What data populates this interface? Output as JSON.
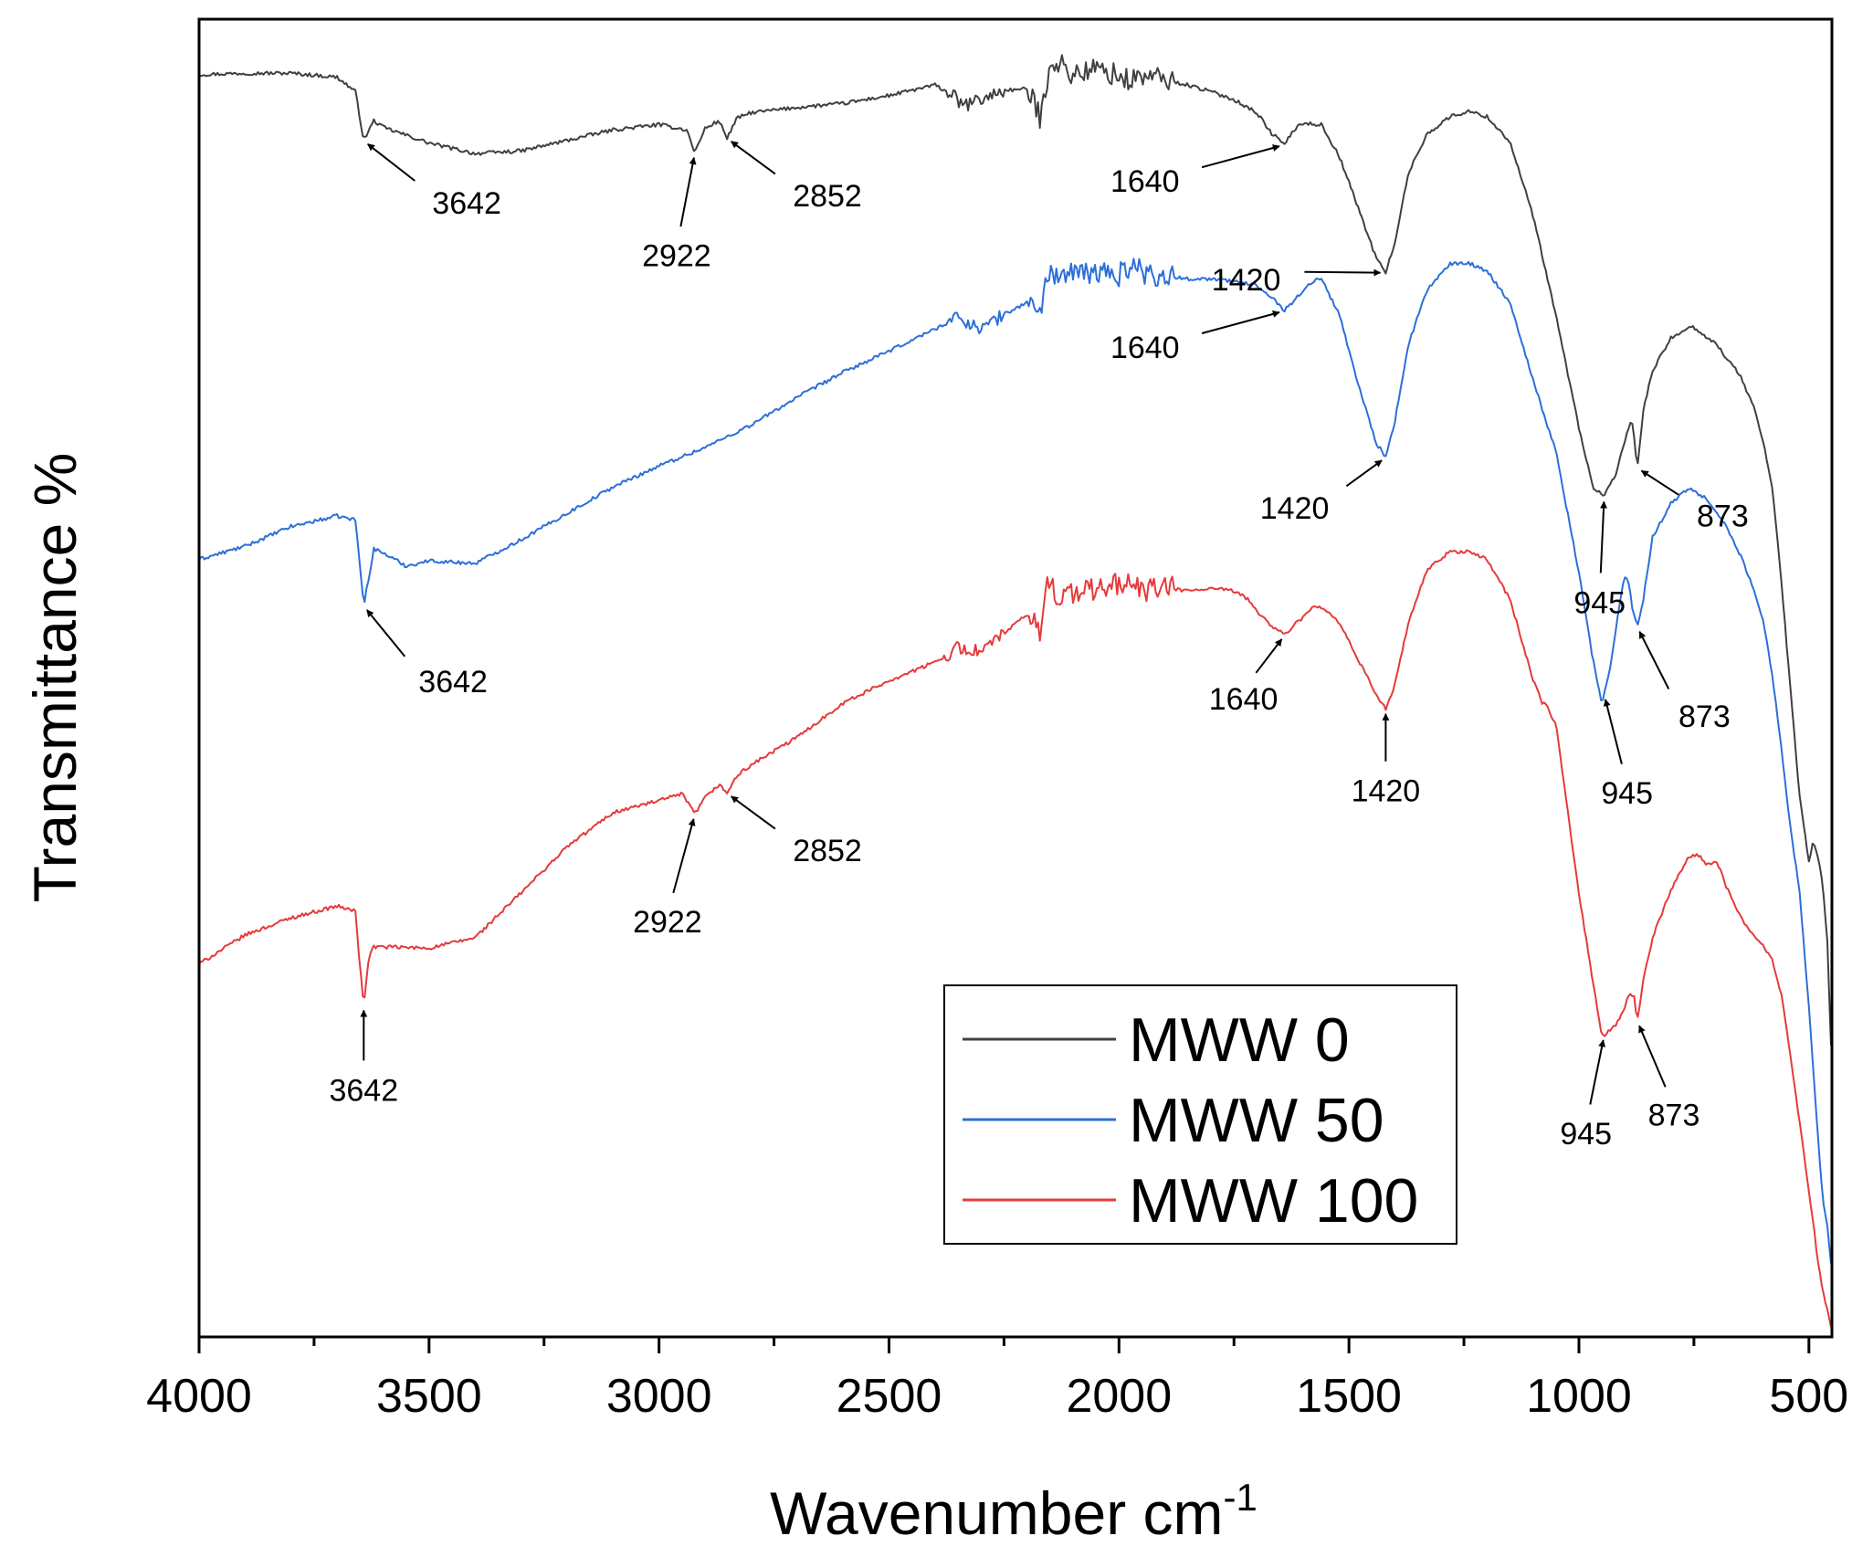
{
  "chart_data": {
    "type": "line",
    "xlabel": "Wavenumber cm",
    "xlabel_superscript": "-1",
    "ylabel": "Transmittance %",
    "xlim": [
      4000,
      450
    ],
    "ylim": [
      0,
      100
    ],
    "x_ticks": [
      4000,
      3500,
      3000,
      2500,
      2000,
      1500,
      1000,
      500
    ],
    "x_tick_labels": [
      "4000",
      "3500",
      "3000",
      "2500",
      "2000",
      "1500",
      "1000",
      "500"
    ],
    "y_ticks_shown": false,
    "legend_position": "center-right",
    "series": [
      {
        "name": "MWW 0",
        "color": "#404040",
        "x": [
          4000,
          3900,
          3800,
          3700,
          3660,
          3642,
          3620,
          3600,
          3500,
          3400,
          3300,
          3200,
          3100,
          3000,
          2940,
          2922,
          2900,
          2870,
          2852,
          2830,
          2800,
          2700,
          2600,
          2500,
          2400,
          2360,
          2340,
          2300,
          2250,
          2200,
          2170,
          2160,
          2150,
          2130,
          2100,
          2050,
          2000,
          1980,
          1950,
          1900,
          1850,
          1800,
          1750,
          1700,
          1670,
          1640,
          1620,
          1600,
          1560,
          1520,
          1480,
          1440,
          1420,
          1400,
          1370,
          1330,
          1280,
          1240,
          1200,
          1150,
          1100,
          1050,
          1000,
          970,
          945,
          920,
          900,
          885,
          873,
          860,
          840,
          800,
          760,
          740,
          720,
          700,
          680,
          650,
          620,
          600,
          580,
          560,
          540,
          520,
          500,
          490,
          480,
          470,
          460,
          450
        ],
        "y": [
          95.8,
          95.9,
          95.9,
          95.6,
          94.5,
          90.8,
          92.3,
          91.8,
          90.6,
          89.8,
          90.0,
          90.8,
          91.6,
          92.0,
          91.6,
          89.9,
          91.7,
          92.3,
          91.0,
          92.5,
          92.9,
          93.3,
          93.6,
          94.2,
          95.0,
          94.2,
          93.4,
          93.9,
          94.6,
          94.7,
          92.5,
          94.6,
          97.0,
          96.6,
          95.8,
          96.2,
          95.7,
          95.3,
          95.7,
          95.4,
          95.0,
          94.5,
          93.9,
          92.9,
          91.4,
          90.5,
          91.6,
          92.1,
          92.0,
          89.5,
          85.7,
          81.8,
          80.8,
          83.1,
          88.4,
          91.3,
          92.6,
          93.0,
          92.6,
          90.7,
          85.1,
          77.5,
          69.0,
          64.5,
          63.8,
          65.4,
          68.1,
          69.7,
          66.0,
          70.3,
          73.3,
          75.8,
          76.7,
          76.4,
          75.8,
          75.3,
          74.3,
          73.0,
          70.6,
          68.0,
          64.5,
          57.5,
          49.0,
          41.0,
          36.0,
          37.7,
          36.3,
          34.5,
          30.0,
          20.0
        ]
      },
      {
        "name": "MWW 50",
        "color": "#2c6fd8",
        "x": [
          4000,
          3900,
          3800,
          3700,
          3660,
          3642,
          3620,
          3600,
          3550,
          3500,
          3400,
          3300,
          3200,
          3100,
          3000,
          2900,
          2800,
          2700,
          2600,
          2500,
          2400,
          2350,
          2300,
          2250,
          2200,
          2170,
          2160,
          2150,
          2130,
          2100,
          2050,
          2000,
          1970,
          1950,
          1900,
          1850,
          1800,
          1750,
          1700,
          1670,
          1640,
          1610,
          1580,
          1560,
          1520,
          1480,
          1440,
          1420,
          1400,
          1370,
          1330,
          1280,
          1240,
          1200,
          1150,
          1100,
          1080,
          1050,
          1000,
          970,
          950,
          930,
          910,
          900,
          890,
          885,
          873,
          860,
          840,
          800,
          760,
          740,
          720,
          700,
          680,
          650,
          620,
          600,
          580,
          560,
          540,
          520,
          500,
          490,
          480,
          470,
          460,
          450
        ],
        "y": [
          59.0,
          60.0,
          61.5,
          62.3,
          62.0,
          55.5,
          59.8,
          59.5,
          58.5,
          58.9,
          58.7,
          60.5,
          62.5,
          64.5,
          66.1,
          67.5,
          69.2,
          71.3,
          73.2,
          74.8,
          76.5,
          77.4,
          76.5,
          77.6,
          78.5,
          78.0,
          79.7,
          80.8,
          80.6,
          80.6,
          80.8,
          80.6,
          81.5,
          80.8,
          80.5,
          80.3,
          80.3,
          80.1,
          79.8,
          79.0,
          77.9,
          79.0,
          80.1,
          80.3,
          77.5,
          72.3,
          67.8,
          66.8,
          69.5,
          75.4,
          79.5,
          81.4,
          81.5,
          80.9,
          78.5,
          72.7,
          70.4,
          67.2,
          58.0,
          51.5,
          48.0,
          51.1,
          56.1,
          57.7,
          57.1,
          55.5,
          53.9,
          56.0,
          60.7,
          63.3,
          64.4,
          64.0,
          63.5,
          62.6,
          61.5,
          59.4,
          56.7,
          54.4,
          50.4,
          44.8,
          38.6,
          33.7,
          25.0,
          20.0,
          15.0,
          10.5,
          8.5,
          5.0
        ]
      },
      {
        "name": "MWW 100",
        "color": "#e63a3a",
        "x": [
          4000,
          3900,
          3800,
          3700,
          3660,
          3650,
          3642,
          3630,
          3620,
          3600,
          3500,
          3400,
          3300,
          3200,
          3100,
          3000,
          2950,
          2922,
          2900,
          2870,
          2852,
          2830,
          2800,
          2700,
          2600,
          2500,
          2400,
          2350,
          2300,
          2250,
          2200,
          2170,
          2160,
          2150,
          2130,
          2100,
          2050,
          2000,
          1970,
          1950,
          1900,
          1850,
          1800,
          1750,
          1720,
          1700,
          1670,
          1640,
          1610,
          1580,
          1560,
          1520,
          1480,
          1440,
          1420,
          1400,
          1370,
          1330,
          1280,
          1240,
          1200,
          1150,
          1100,
          1080,
          1070,
          1060,
          1050,
          1000,
          970,
          950,
          920,
          900,
          890,
          880,
          873,
          860,
          840,
          800,
          760,
          740,
          720,
          700,
          680,
          650,
          620,
          600,
          580,
          560,
          540,
          520,
          500,
          490,
          480,
          470,
          460,
          450
        ],
        "y": [
          28.3,
          30.5,
          31.8,
          32.7,
          32.3,
          28.0,
          25.2,
          29.0,
          29.6,
          29.6,
          29.5,
          30.3,
          33.7,
          37.2,
          39.8,
          40.7,
          41.2,
          39.7,
          40.9,
          41.9,
          41.3,
          42.6,
          43.4,
          45.5,
          48.1,
          49.8,
          51.2,
          52.3,
          52.0,
          53.4,
          54.8,
          53.5,
          56.5,
          57.6,
          56.0,
          56.5,
          56.7,
          57.2,
          57.1,
          56.6,
          56.9,
          56.6,
          56.8,
          56.6,
          56.0,
          55.1,
          54.0,
          53.3,
          54.3,
          55.3,
          55.4,
          54.1,
          51.4,
          48.7,
          47.7,
          49.5,
          54.3,
          58.2,
          59.6,
          59.6,
          59.0,
          56.0,
          49.9,
          48.1,
          47.9,
          47.0,
          46.5,
          33.7,
          27.0,
          22.8,
          23.6,
          25.0,
          26.2,
          25.8,
          24.0,
          27.1,
          30.3,
          33.9,
          36.5,
          36.6,
          35.8,
          36.1,
          34.2,
          31.9,
          30.5,
          29.7,
          28.6,
          26.0,
          21.3,
          16.3,
          11.0,
          8.5,
          5.5,
          3.6,
          2.0,
          0.5
        ]
      }
    ],
    "annotations": [
      {
        "series": "MWW 0",
        "label": "3642",
        "x": 3642
      },
      {
        "series": "MWW 0",
        "label": "2922",
        "x": 2922
      },
      {
        "series": "MWW 0",
        "label": "2852",
        "x": 2852
      },
      {
        "series": "MWW 0",
        "label": "1640",
        "x": 1640
      },
      {
        "series": "MWW 0",
        "label": "1420",
        "x": 1420
      },
      {
        "series": "MWW 0",
        "label": "945",
        "x": 945
      },
      {
        "series": "MWW 0",
        "label": "873",
        "x": 873
      },
      {
        "series": "MWW 50",
        "label": "3642",
        "x": 3642
      },
      {
        "series": "MWW 50",
        "label": "1640",
        "x": 1640
      },
      {
        "series": "MWW 50",
        "label": "1420",
        "x": 1420
      },
      {
        "series": "MWW 50",
        "label": "945",
        "x": 945
      },
      {
        "series": "MWW 50",
        "label": "873",
        "x": 873
      },
      {
        "series": "MWW 100",
        "label": "3642",
        "x": 3642
      },
      {
        "series": "MWW 100",
        "label": "2922",
        "x": 2922
      },
      {
        "series": "MWW 100",
        "label": "2852",
        "x": 2852
      },
      {
        "series": "MWW 100",
        "label": "1640",
        "x": 1640
      },
      {
        "series": "MWW 100",
        "label": "1420",
        "x": 1420
      },
      {
        "series": "MWW 100",
        "label": "945",
        "x": 945
      },
      {
        "series": "MWW 100",
        "label": "873",
        "x": 873
      }
    ]
  }
}
